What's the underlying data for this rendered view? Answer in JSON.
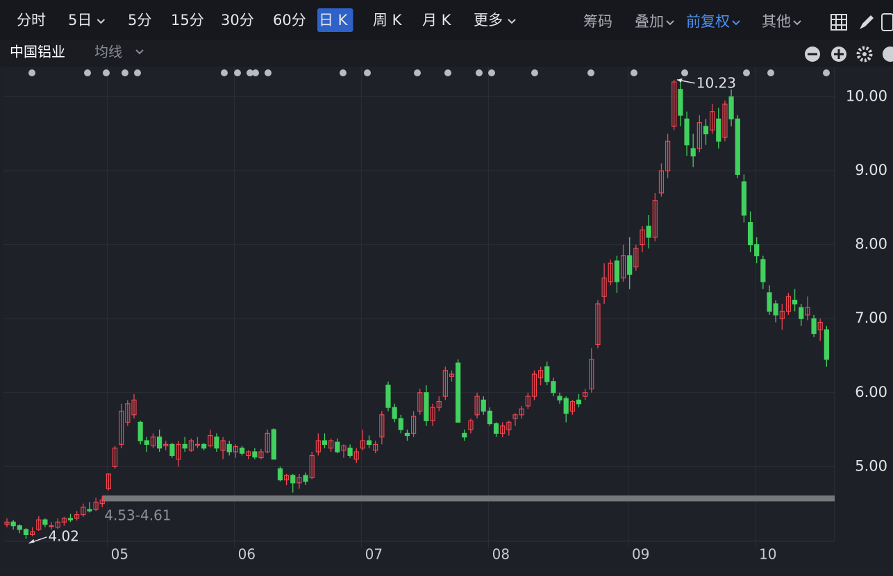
{
  "toolbar": {
    "periods": [
      "分时",
      "5日",
      "5分",
      "15分",
      "30分",
      "60分",
      "日 K",
      "周 K",
      "月 K",
      "更多"
    ],
    "active_index": 6,
    "tools": [
      "筹码",
      "叠加",
      "前复权",
      "其他"
    ],
    "highlight_tool_index": 2
  },
  "subbar": {
    "stock_name": "中国铝业",
    "indicator": "均线"
  },
  "chart_data": {
    "type": "candlestick",
    "candles": [
      [
        4.22,
        4.3,
        4.18,
        4.25
      ],
      [
        4.25,
        4.28,
        4.15,
        4.2
      ],
      [
        4.2,
        4.22,
        4.1,
        4.15
      ],
      [
        4.15,
        4.17,
        4.02,
        4.08
      ],
      [
        4.08,
        4.18,
        4.06,
        4.12
      ],
      [
        4.15,
        4.33,
        4.13,
        4.28
      ],
      [
        4.28,
        4.3,
        4.18,
        4.22
      ],
      [
        4.2,
        4.25,
        4.15,
        4.2
      ],
      [
        4.18,
        4.3,
        4.16,
        4.25
      ],
      [
        4.25,
        4.32,
        4.2,
        4.3
      ],
      [
        4.3,
        4.36,
        4.25,
        4.28
      ],
      [
        4.3,
        4.4,
        4.27,
        4.35
      ],
      [
        4.35,
        4.5,
        4.32,
        4.45
      ],
      [
        4.42,
        4.52,
        4.38,
        4.4
      ],
      [
        4.42,
        4.58,
        4.4,
        4.52
      ],
      [
        4.5,
        4.6,
        4.45,
        4.55
      ],
      [
        4.7,
        4.9,
        4.68,
        4.9
      ],
      [
        5.0,
        5.28,
        4.97,
        5.25
      ],
      [
        5.3,
        5.85,
        5.25,
        5.75
      ],
      [
        5.6,
        5.9,
        5.55,
        5.85
      ],
      [
        5.7,
        5.98,
        5.65,
        5.9
      ],
      [
        5.6,
        5.62,
        5.3,
        5.35
      ],
      [
        5.35,
        5.4,
        5.2,
        5.3
      ],
      [
        5.28,
        5.45,
        5.25,
        5.4
      ],
      [
        5.4,
        5.5,
        5.2,
        5.25
      ],
      [
        5.28,
        5.35,
        5.22,
        5.3
      ],
      [
        5.3,
        5.32,
        5.12,
        5.15
      ],
      [
        5.1,
        5.35,
        5.0,
        5.3
      ],
      [
        5.3,
        5.4,
        5.2,
        5.25
      ],
      [
        5.22,
        5.38,
        5.2,
        5.35
      ],
      [
        5.3,
        5.4,
        5.25,
        5.3
      ],
      [
        5.3,
        5.32,
        5.22,
        5.25
      ],
      [
        5.28,
        5.5,
        5.26,
        5.42
      ],
      [
        5.4,
        5.45,
        5.2,
        5.25
      ],
      [
        5.22,
        5.4,
        5.1,
        5.35
      ],
      [
        5.3,
        5.35,
        5.15,
        5.2
      ],
      [
        5.2,
        5.3,
        5.12,
        5.27
      ],
      [
        5.25,
        5.28,
        5.15,
        5.18
      ],
      [
        5.15,
        5.22,
        5.1,
        5.2
      ],
      [
        5.2,
        5.25,
        5.1,
        5.13
      ],
      [
        5.12,
        5.24,
        5.1,
        5.2
      ],
      [
        5.2,
        5.5,
        5.18,
        5.45
      ],
      [
        5.5,
        5.52,
        5.1,
        5.1
      ],
      [
        4.97,
        5.0,
        4.8,
        4.82
      ],
      [
        4.82,
        4.9,
        4.75,
        4.88
      ],
      [
        4.88,
        4.9,
        4.65,
        4.78
      ],
      [
        4.78,
        4.9,
        4.7,
        4.85
      ],
      [
        4.88,
        4.92,
        4.75,
        4.8
      ],
      [
        4.85,
        5.2,
        4.83,
        5.15
      ],
      [
        5.2,
        5.45,
        5.15,
        5.35
      ],
      [
        5.35,
        5.45,
        5.25,
        5.3
      ],
      [
        5.25,
        5.38,
        5.2,
        5.35
      ],
      [
        5.33,
        5.38,
        5.18,
        5.2
      ],
      [
        5.22,
        5.3,
        5.12,
        5.28
      ],
      [
        5.25,
        5.3,
        5.12,
        5.15
      ],
      [
        5.1,
        5.25,
        5.05,
        5.2
      ],
      [
        5.25,
        5.5,
        5.22,
        5.35
      ],
      [
        5.35,
        5.42,
        5.25,
        5.3
      ],
      [
        5.22,
        5.35,
        5.18,
        5.3
      ],
      [
        5.4,
        5.75,
        5.3,
        5.7
      ],
      [
        6.1,
        6.15,
        5.75,
        5.8
      ],
      [
        5.8,
        5.85,
        5.6,
        5.65
      ],
      [
        5.65,
        5.7,
        5.45,
        5.5
      ],
      [
        5.45,
        5.5,
        5.35,
        5.42
      ],
      [
        5.45,
        5.75,
        5.4,
        5.68
      ],
      [
        5.75,
        6.05,
        5.7,
        6.0
      ],
      [
        6.0,
        6.1,
        5.55,
        5.62
      ],
      [
        5.62,
        5.85,
        5.55,
        5.8
      ],
      [
        5.8,
        5.95,
        5.75,
        5.88
      ],
      [
        5.95,
        6.35,
        5.9,
        6.3
      ],
      [
        6.22,
        6.3,
        6.15,
        6.25
      ],
      [
        6.4,
        6.45,
        5.65,
        5.6
      ],
      [
        5.45,
        5.5,
        5.35,
        5.4
      ],
      [
        5.5,
        5.65,
        5.45,
        5.62
      ],
      [
        5.7,
        6.0,
        5.65,
        5.95
      ],
      [
        5.9,
        5.95,
        5.7,
        5.75
      ],
      [
        5.75,
        5.8,
        5.55,
        5.58
      ],
      [
        5.58,
        5.6,
        5.4,
        5.45
      ],
      [
        5.45,
        5.6,
        5.4,
        5.55
      ],
      [
        5.5,
        5.62,
        5.42,
        5.6
      ],
      [
        5.65,
        5.72,
        5.55,
        5.7
      ],
      [
        5.7,
        5.82,
        5.65,
        5.78
      ],
      [
        5.82,
        6.0,
        5.78,
        5.95
      ],
      [
        5.95,
        6.3,
        5.9,
        6.25
      ],
      [
        6.2,
        6.35,
        6.1,
        6.3
      ],
      [
        6.35,
        6.42,
        6.1,
        6.15
      ],
      [
        6.15,
        6.2,
        5.95,
        6.0
      ],
      [
        5.95,
        6.0,
        5.85,
        5.9
      ],
      [
        5.92,
        5.95,
        5.6,
        5.72
      ],
      [
        5.75,
        5.9,
        5.7,
        5.88
      ],
      [
        5.9,
        5.98,
        5.8,
        5.85
      ],
      [
        5.95,
        6.05,
        5.9,
        6.0
      ],
      [
        6.05,
        6.6,
        6.0,
        6.45
      ],
      [
        6.65,
        7.25,
        6.6,
        7.2
      ],
      [
        7.3,
        7.75,
        7.2,
        7.55
      ],
      [
        7.5,
        7.8,
        7.45,
        7.75
      ],
      [
        7.78,
        7.85,
        7.35,
        7.5
      ],
      [
        7.55,
        8.0,
        7.5,
        7.85
      ],
      [
        7.85,
        8.1,
        7.4,
        7.6
      ],
      [
        7.7,
        8.0,
        7.65,
        7.95
      ],
      [
        8.0,
        8.25,
        7.9,
        8.2
      ],
      [
        8.25,
        8.4,
        7.95,
        8.1
      ],
      [
        8.1,
        8.7,
        8.05,
        8.6
      ],
      [
        8.7,
        9.1,
        8.65,
        9.0
      ],
      [
        9.0,
        9.5,
        8.9,
        9.4
      ],
      [
        9.6,
        10.23,
        9.55,
        10.2
      ],
      [
        10.1,
        10.2,
        9.6,
        9.75
      ],
      [
        9.7,
        9.8,
        9.2,
        9.35
      ],
      [
        9.3,
        9.5,
        9.05,
        9.2
      ],
      [
        9.3,
        9.75,
        9.25,
        9.65
      ],
      [
        9.6,
        9.7,
        9.35,
        9.5
      ],
      [
        9.55,
        9.9,
        9.5,
        9.8
      ],
      [
        9.7,
        9.85,
        9.3,
        9.4
      ],
      [
        9.45,
        9.95,
        9.4,
        9.9
      ],
      [
        10.0,
        10.1,
        9.6,
        9.7
      ],
      [
        9.7,
        9.75,
        8.9,
        8.95
      ],
      [
        8.85,
        8.95,
        8.3,
        8.4
      ],
      [
        8.3,
        8.45,
        7.9,
        8.0
      ],
      [
        8.0,
        8.1,
        7.75,
        7.85
      ],
      [
        7.8,
        7.85,
        7.4,
        7.5
      ],
      [
        7.35,
        7.45,
        7.05,
        7.1
      ],
      [
        7.2,
        7.25,
        6.95,
        7.05
      ],
      [
        7.0,
        7.2,
        6.85,
        7.1
      ],
      [
        7.1,
        7.35,
        7.05,
        7.3
      ],
      [
        7.25,
        7.4,
        7.1,
        7.2
      ],
      [
        7.15,
        7.2,
        6.9,
        7.0
      ],
      [
        7.05,
        7.3,
        6.98,
        7.15
      ],
      [
        7.0,
        7.05,
        6.75,
        6.8
      ],
      [
        6.85,
        7.0,
        6.7,
        6.95
      ],
      [
        6.85,
        6.9,
        6.35,
        6.45
      ]
    ],
    "up_color": "#ee4650",
    "down_color": "#41d15e",
    "ylim": [
      3.99,
      10.37
    ],
    "yticks": [
      {
        "value": 5,
        "label": "5.00"
      },
      {
        "value": 6,
        "label": "6.00"
      },
      {
        "value": 7,
        "label": "7.00"
      },
      {
        "value": 8,
        "label": "8.00"
      },
      {
        "value": 9,
        "label": "9.00"
      },
      {
        "value": 10,
        "label": "10.00"
      }
    ],
    "xticks": [
      {
        "value": 16,
        "label": "05"
      },
      {
        "value": 36,
        "label": "06"
      },
      {
        "value": 56,
        "label": "07"
      },
      {
        "value": 76,
        "label": "08"
      },
      {
        "value": 98,
        "label": "09"
      },
      {
        "value": 118,
        "label": "10"
      }
    ],
    "max_marker": {
      "index": 105
    },
    "min_marker": {
      "index": 3
    },
    "support_band": {
      "label": "4.53-4.61",
      "low": 4.53,
      "high": 4.61,
      "start_index": 15
    },
    "grid": true
  }
}
